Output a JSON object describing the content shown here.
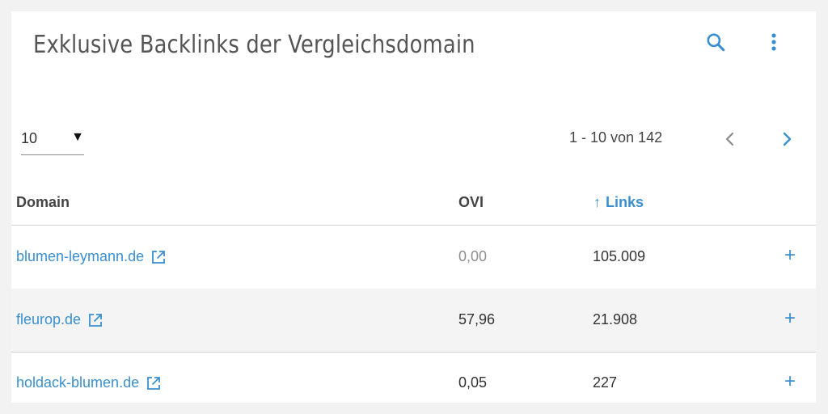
{
  "card": {
    "title": "Exklusive Backlinks der Vergleichsdomain"
  },
  "toolbar": {
    "search_icon": "search-icon",
    "more_icon": "more-vertical-icon"
  },
  "pagination": {
    "rows_per_page": "10",
    "dropdown_arrow": "▼",
    "range_text": "1 - 10 von 142"
  },
  "table": {
    "columns": {
      "domain": "Domain",
      "ovi": "OVI",
      "links_arrow": "↑",
      "links": "Links"
    },
    "rows": [
      {
        "domain": "blumen-leymann.de",
        "ovi": "0,00",
        "links": "105.009",
        "add": "+"
      },
      {
        "domain": "fleurop.de",
        "ovi": "57,96",
        "links": "21.908",
        "add": "+"
      },
      {
        "domain": "holdack-blumen.de",
        "ovi": "0,05",
        "links": "227",
        "add": "+"
      }
    ]
  },
  "colors": {
    "accent": "#3a8fd0",
    "text": "#333333",
    "muted": "#8e8e8e"
  }
}
